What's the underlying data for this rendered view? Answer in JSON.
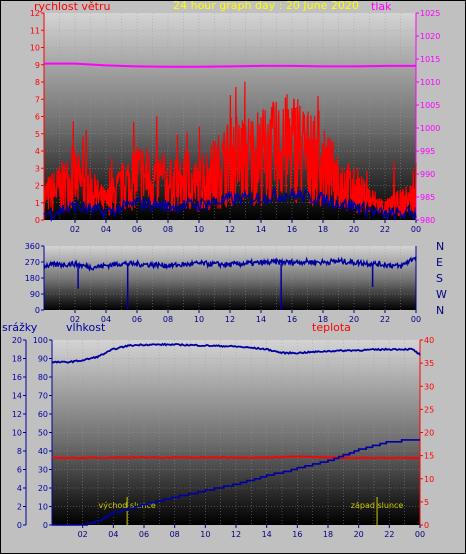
{
  "header": {
    "title": "24 hour graph day : 20 June 2020",
    "left_label": "rychlost větru",
    "right_label": "tlak"
  },
  "colors": {
    "wind": "#ff0000",
    "pressure": "#ff00ff",
    "wind_dir": "#0000a0",
    "humidity": "#0000a0",
    "temperature": "#ff0000",
    "rain": "#0000a0",
    "sun_markers": "#cccc00",
    "title": "#ffff00",
    "label_left_top": "#ff0000",
    "label_right_top": "#ff00ff",
    "label_left_bottom": "#0000a0",
    "label_right_bottom": "#ff0000"
  },
  "chart_data": [
    {
      "type": "line",
      "name": "wind_pressure",
      "title": "24 hour graph day : 20 June 2020",
      "x_ticks": [
        "02",
        "04",
        "06",
        "08",
        "10",
        "12",
        "14",
        "16",
        "18",
        "20",
        "22",
        "00"
      ],
      "xlim_hours": [
        0,
        24
      ],
      "left_axis": {
        "label": "rychlost větru",
        "ticks": [
          "0",
          "1",
          "2",
          "3",
          "4",
          "5",
          "6",
          "7",
          "8",
          "9",
          "10",
          "11",
          "12"
        ],
        "range": [
          0,
          12
        ]
      },
      "right_axis": {
        "label": "tlak",
        "ticks": [
          "980",
          "985",
          "990",
          "995",
          "1000",
          "1005",
          "1010",
          "1015",
          "1020",
          "1025"
        ],
        "range": [
          980,
          1025
        ]
      },
      "series": [
        {
          "axis": "right",
          "x": [
            0,
            2,
            4,
            6,
            8,
            10,
            12,
            14,
            16,
            18,
            20,
            22,
            24
          ],
          "values": [
            1014,
            1014,
            1013.6,
            1013.4,
            1013.3,
            1013.3,
            1013.4,
            1013.5,
            1013.5,
            1013.4,
            1013.4,
            1013.5,
            1013.5
          ]
        },
        {
          "axis": "left",
          "x": [
            0,
            2,
            4,
            6,
            8,
            10,
            12,
            14,
            15.5,
            16,
            18,
            20,
            22,
            24
          ],
          "values": [
            2,
            3.5,
            1.5,
            4,
            3,
            3,
            5,
            5.5,
            6,
            6.5,
            4.5,
            2.5,
            1,
            2
          ]
        },
        {
          "axis": "left",
          "x": [
            0,
            2,
            4,
            6,
            8,
            10,
            12,
            14,
            16,
            18,
            20,
            22,
            24
          ],
          "values": [
            0.3,
            0.8,
            0.4,
            1,
            0.8,
            0.9,
            1.2,
            1.3,
            1.5,
            1.2,
            0.8,
            0.3,
            0.4
          ]
        }
      ]
    },
    {
      "type": "line",
      "name": "wind_direction",
      "x_ticks": [
        "02",
        "04",
        "06",
        "08",
        "10",
        "12",
        "14",
        "16",
        "18",
        "20",
        "22",
        "00"
      ],
      "xlim_hours": [
        0,
        24
      ],
      "left_axis": {
        "ticks": [
          "0",
          "90",
          "180",
          "270",
          "360"
        ],
        "range": [
          0,
          360
        ]
      },
      "right_axis": {
        "ticks": [
          "N",
          "W",
          "S",
          "E",
          "N"
        ]
      },
      "series": [
        {
          "x": [
            0,
            1,
            2,
            3,
            4,
            5,
            6,
            7,
            8,
            9,
            10,
            11,
            12,
            13,
            14,
            15,
            16,
            17,
            18,
            19,
            20,
            21,
            22,
            23,
            24
          ],
          "values": [
            250,
            255,
            260,
            240,
            250,
            262,
            258,
            255,
            250,
            255,
            262,
            258,
            255,
            262,
            265,
            270,
            268,
            272,
            268,
            275,
            268,
            262,
            255,
            245,
            300
          ]
        }
      ],
      "dips": [
        {
          "x": 2.2,
          "value": 120
        },
        {
          "x": 5.4,
          "value": 0
        },
        {
          "x": 15.3,
          "value": 0
        },
        {
          "x": 21.2,
          "value": 130
        }
      ]
    },
    {
      "type": "line",
      "name": "rain_humidity_temperature",
      "x_ticks": [
        "02",
        "04",
        "06",
        "08",
        "10",
        "12",
        "14",
        "16",
        "18",
        "20",
        "22",
        "00"
      ],
      "xlim_hours": [
        0,
        24
      ],
      "rain_axis": {
        "label": "srážky",
        "ticks": [
          "0",
          "2",
          "4",
          "6",
          "8",
          "10",
          "12",
          "14",
          "16",
          "18",
          "20"
        ],
        "range": [
          0,
          20
        ]
      },
      "humidity_axis": {
        "label": "vlhkost",
        "ticks": [
          "0",
          "10",
          "20",
          "30",
          "40",
          "50",
          "60",
          "70",
          "80",
          "90",
          "100"
        ],
        "range": [
          0,
          100
        ]
      },
      "temperature_axis": {
        "label": "teplota",
        "ticks": [
          "0",
          "5",
          "10",
          "15",
          "20",
          "25",
          "30",
          "35",
          "40"
        ],
        "range": [
          0,
          40
        ]
      },
      "annotations": [
        "východ slunce",
        "západ slunce"
      ],
      "sunrise_hour": 4.9,
      "sunset_hour": 21.2,
      "series": [
        {
          "axis": "humidity",
          "x": [
            0,
            1,
            2,
            3,
            4,
            5,
            6,
            8,
            10,
            12,
            14,
            15,
            16,
            18,
            20,
            22,
            23.5,
            24
          ],
          "values": [
            88,
            88,
            89,
            91,
            95,
            97,
            97.5,
            97.5,
            97,
            96.5,
            95,
            93,
            93,
            94,
            94.5,
            95,
            95,
            92
          ]
        },
        {
          "axis": "temperature",
          "x": [
            0,
            2,
            4,
            6,
            8,
            10,
            12,
            14,
            16,
            18,
            20,
            22,
            24
          ],
          "values": [
            14.5,
            14.5,
            14.6,
            14.6,
            14.6,
            14.6,
            14.6,
            14.6,
            14.8,
            14.6,
            14.5,
            14.5,
            14.5
          ]
        },
        {
          "axis": "rain",
          "x": [
            0,
            2,
            3,
            4,
            6,
            8,
            10,
            12,
            14,
            16,
            18,
            20,
            22,
            23.5,
            24
          ],
          "values": [
            0,
            0,
            0.4,
            1.3,
            2.2,
            3,
            3.7,
            4.4,
            5.3,
            6.1,
            6.9,
            8.1,
            9,
            9.2,
            9.2
          ]
        }
      ]
    }
  ]
}
